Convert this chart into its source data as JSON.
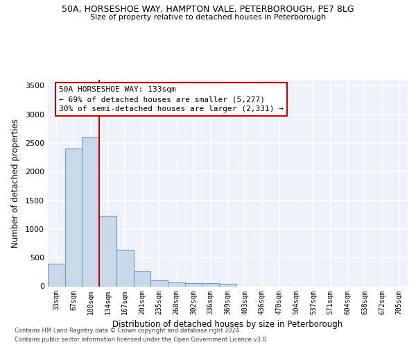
{
  "title_line1": "50A, HORSESHOE WAY, HAMPTON VALE, PETERBOROUGH, PE7 8LG",
  "title_line2": "Size of property relative to detached houses in Peterborough",
  "xlabel": "Distribution of detached houses by size in Peterborough",
  "ylabel": "Number of detached properties",
  "categories": [
    "33sqm",
    "67sqm",
    "100sqm",
    "134sqm",
    "167sqm",
    "201sqm",
    "235sqm",
    "268sqm",
    "302sqm",
    "336sqm",
    "369sqm",
    "403sqm",
    "436sqm",
    "470sqm",
    "504sqm",
    "537sqm",
    "571sqm",
    "604sqm",
    "638sqm",
    "672sqm",
    "705sqm"
  ],
  "values": [
    390,
    2400,
    2600,
    1230,
    640,
    260,
    100,
    65,
    60,
    55,
    40,
    0,
    0,
    0,
    0,
    0,
    0,
    0,
    0,
    0,
    0
  ],
  "bar_color": "#c9d9ea",
  "bar_edge_color": "#6a9ec0",
  "plot_bg_color": "#edf1fa",
  "grid_color": "#ffffff",
  "ylim": [
    0,
    3600
  ],
  "yticks": [
    0,
    500,
    1000,
    1500,
    2000,
    2500,
    3000,
    3500
  ],
  "red_line_x": 2.5,
  "annotation_line1": "50A HORSESHOE WAY: 133sqm",
  "annotation_line2": "← 69% of detached houses are smaller (5,277)",
  "annotation_line3": "30% of semi-detached houses are larger (2,331) →",
  "red_color": "#cc0000",
  "footnote1": "Contains HM Land Registry data © Crown copyright and database right 2024.",
  "footnote2": "Contains public sector information licensed under the Open Government Licence v3.0."
}
